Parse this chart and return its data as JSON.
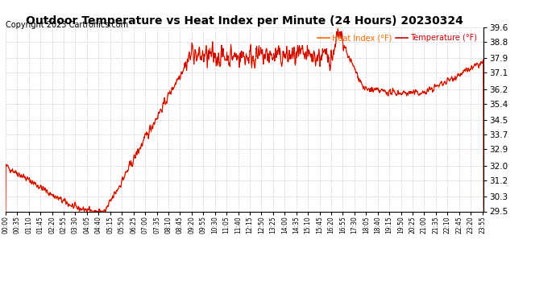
{
  "title": "Outdoor Temperature vs Heat Index per Minute (24 Hours) 20230324",
  "copyright": "Copyright 2023 Cartronics.com",
  "legend_heat": "Heat Index (°F)",
  "legend_temp": "Temperature (°F)",
  "legend_heat_color": "#ff6600",
  "legend_temp_color": "#cc0000",
  "line_color": "#cc0000",
  "ylim": [
    29.5,
    39.6
  ],
  "yticks": [
    29.5,
    30.3,
    31.2,
    32.0,
    32.9,
    33.7,
    34.5,
    35.4,
    36.2,
    37.1,
    37.9,
    38.8,
    39.6
  ],
  "background_color": "#ffffff",
  "grid_color": "#cccccc",
  "title_fontsize": 10,
  "copyright_fontsize": 7,
  "xtick_step_minutes": 35
}
